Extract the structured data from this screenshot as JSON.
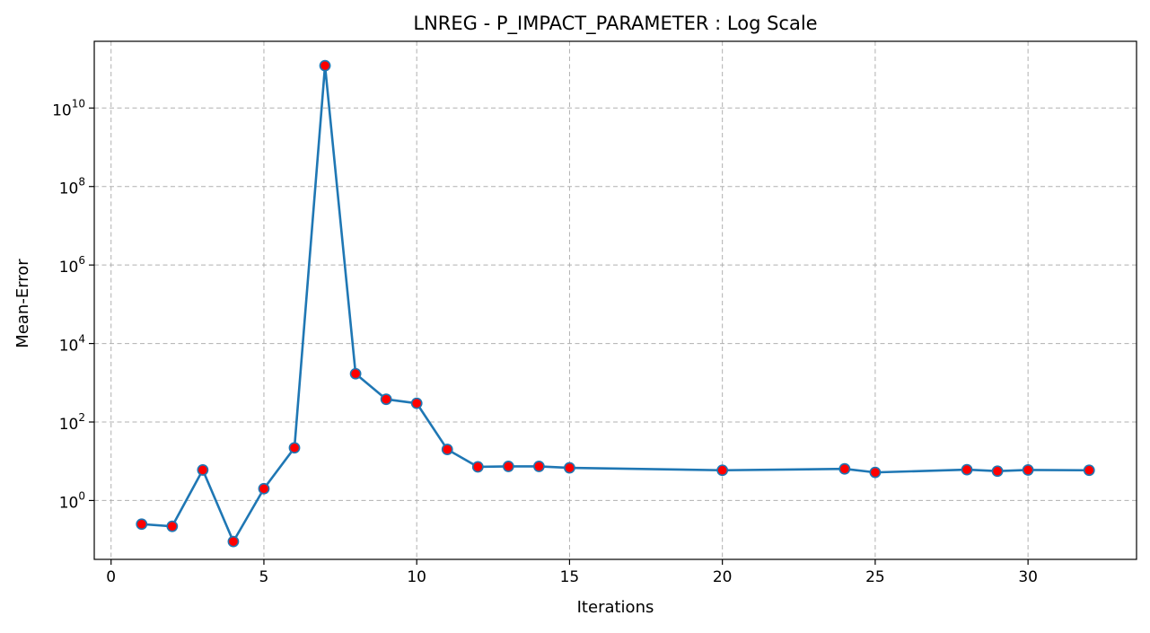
{
  "chart_data": {
    "type": "line",
    "title": "LNREG - P_IMPACT_PARAMETER : Log Scale",
    "xlabel": "Iterations",
    "ylabel": "Mean-Error",
    "yscale": "log",
    "grid": true,
    "xlim": [
      -0.55,
      33.55
    ],
    "ylim_log10": [
      -1.5,
      11.7
    ],
    "x_ticks": [
      {
        "value": 0,
        "label": "0"
      },
      {
        "value": 5,
        "label": "5"
      },
      {
        "value": 10,
        "label": "10"
      },
      {
        "value": 15,
        "label": "15"
      },
      {
        "value": 20,
        "label": "20"
      },
      {
        "value": 25,
        "label": "25"
      },
      {
        "value": 30,
        "label": "30"
      }
    ],
    "y_ticks": [
      {
        "exp": 0,
        "base": "10",
        "sup": "0"
      },
      {
        "exp": 2,
        "base": "10",
        "sup": "2"
      },
      {
        "exp": 4,
        "base": "10",
        "sup": "4"
      },
      {
        "exp": 6,
        "base": "10",
        "sup": "6"
      },
      {
        "exp": 8,
        "base": "10",
        "sup": "8"
      },
      {
        "exp": 10,
        "base": "10",
        "sup": "10"
      }
    ],
    "line_color": "#1f77b4",
    "marker_face_color": "#ff0000",
    "marker_edge_color": "#1f77b4",
    "series": [
      {
        "x": [
          1,
          2,
          3,
          4,
          5,
          6,
          7,
          8,
          9,
          10,
          11,
          12,
          13,
          14,
          15,
          20,
          24,
          25,
          28,
          29,
          30,
          32
        ],
        "y": [
          0.25,
          0.22,
          6.0,
          0.09,
          2.0,
          22,
          120000000000,
          1700,
          380,
          300,
          20,
          7.2,
          7.4,
          7.4,
          6.8,
          5.9,
          6.4,
          5.2,
          6.1,
          5.6,
          6.0,
          5.9
        ]
      }
    ]
  }
}
